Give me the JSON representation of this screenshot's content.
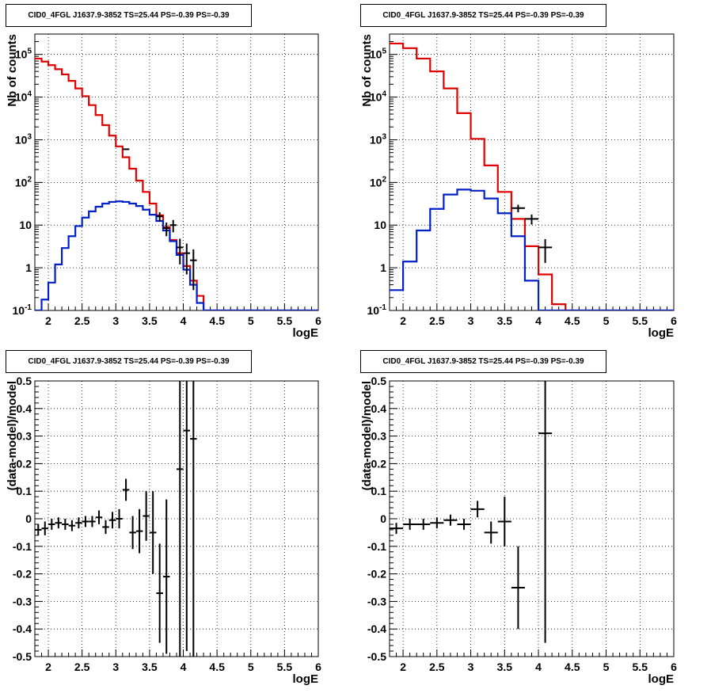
{
  "colors": {
    "data": "#000000",
    "total": "#e00000",
    "source": "#0020c8",
    "grid": "#000000",
    "background": "#ffffff"
  },
  "chart_data": [
    {
      "type": "line",
      "title": "CID0_4FGL J1637.9-3852 TS=25.44 PS=-0.39 PS=-0.39",
      "xlabel": "logE",
      "ylabel": "Nb of counts",
      "yscale": "log",
      "xlim": [
        1.8,
        6.0
      ],
      "ylim": [
        0.1,
        300000
      ],
      "xticks": [
        "2",
        "2.5",
        "3",
        "3.5",
        "4",
        "4.5",
        "5",
        "5.5",
        "6"
      ],
      "yticks": [
        "10^{-1}",
        "1",
        "10",
        "10^{2}",
        "10^{3}",
        "10^{4}",
        "10^{5}"
      ],
      "grid": true,
      "binning": {
        "start": 1.8,
        "width": 0.1
      },
      "series": [
        {
          "values": [
            80000,
            68000,
            56000,
            45000,
            34000,
            24000,
            16000,
            10500,
            6500,
            3800,
            2200,
            1250,
            700,
            390,
            210,
            110,
            60,
            32,
            17,
            9,
            4.5,
            2.2,
            1.1,
            0.5,
            0.22,
            0.1,
            0.1,
            0.1,
            0.1,
            0.1,
            0.1,
            0.1,
            0.1,
            0.1,
            0.1,
            0.1,
            0.1,
            0.1,
            0.1,
            0.1,
            0.1,
            0.1
          ]
        },
        {
          "values": [
            0.1,
            0.18,
            0.45,
            1.2,
            2.9,
            5.5,
            9.5,
            15,
            21,
            27,
            32,
            35,
            36,
            35,
            32,
            28,
            23,
            17.5,
            12.5,
            7.5,
            4.2,
            2.0,
            0.9,
            0.4,
            0.15,
            0.1,
            0.1,
            0.1,
            0.1,
            0.1,
            0.1,
            0.1,
            0.1,
            0.1,
            0.1,
            0.1,
            0.1,
            0.1,
            0.1,
            0.1,
            0.1,
            0.1
          ]
        }
      ],
      "points": [
        {
          "x": 3.15,
          "y": 600,
          "yerr": 25
        },
        {
          "x": 3.65,
          "y": 16,
          "yerr": 4
        },
        {
          "x": 3.75,
          "y": 8.5,
          "yerr": 3
        },
        {
          "x": 3.85,
          "y": 10,
          "yerr": 3.2
        },
        {
          "x": 3.95,
          "y": 3,
          "yerr": 1.8
        },
        {
          "x": 4.05,
          "y": 2.2,
          "yerr": 1.5
        },
        {
          "x": 4.15,
          "y": 1.5,
          "yerr": 1.2
        }
      ]
    },
    {
      "type": "line",
      "title": "CID0_4FGL J1637.9-3852 TS=25.44 PS=-0.39 PS=-0.39",
      "xlabel": "logE",
      "ylabel": "Nb of counts",
      "yscale": "log",
      "xlim": [
        1.8,
        6.0
      ],
      "ylim": [
        0.1,
        300000
      ],
      "xticks": [
        "2",
        "2.5",
        "3",
        "3.5",
        "4",
        "4.5",
        "5",
        "5.5",
        "6"
      ],
      "yticks": [
        "10^{-1}",
        "1",
        "10",
        "10^{2}",
        "10^{3}",
        "10^{4}",
        "10^{5}"
      ],
      "grid": true,
      "binning": {
        "start": 1.8,
        "width": 0.2
      },
      "series": [
        {
          "values": [
            180000,
            140000,
            80000,
            40000,
            16000,
            4200,
            1050,
            250,
            60,
            14,
            3.2,
            0.7,
            0.14,
            0.1,
            0.1,
            0.1,
            0.1,
            0.1,
            0.1,
            0.1,
            0.1
          ]
        },
        {
          "values": [
            0.3,
            1.4,
            7.5,
            24,
            52,
            68,
            64,
            42,
            19,
            5.5,
            0.5,
            0.1,
            0.1,
            0.1,
            0.1,
            0.1,
            0.1,
            0.1,
            0.1,
            0.1,
            0.1
          ]
        }
      ],
      "points": [
        {
          "x": 3.7,
          "y": 25,
          "yerr": 5
        },
        {
          "x": 3.9,
          "y": 14,
          "yerr": 3.7
        },
        {
          "x": 4.1,
          "y": 3,
          "yerr": 1.7
        }
      ]
    },
    {
      "type": "scatter",
      "title": "CID0_4FGL J1637.9-3852 TS=25.44 PS=-0.39 PS=-0.39",
      "xlabel": "logE",
      "ylabel": "(data-model)/model",
      "xlim": [
        1.8,
        6.0
      ],
      "ylim": [
        -0.5,
        0.5
      ],
      "xticks": [
        "2",
        "2.5",
        "3",
        "3.5",
        "4",
        "4.5",
        "5",
        "5.5",
        "6"
      ],
      "yticks": [
        "-0.5",
        "-0.4",
        "-0.3",
        "-0.2",
        "-0.1",
        "0",
        "0.1",
        "0.2",
        "0.3",
        "0.4",
        "0.5"
      ],
      "grid": true,
      "points": [
        {
          "x": 1.85,
          "y": -0.04,
          "xerr": 0.05,
          "yerr": 0.02
        },
        {
          "x": 1.95,
          "y": -0.035,
          "xerr": 0.05,
          "yerr": 0.025
        },
        {
          "x": 2.05,
          "y": -0.02,
          "xerr": 0.05,
          "yerr": 0.02
        },
        {
          "x": 2.15,
          "y": -0.015,
          "xerr": 0.05,
          "yerr": 0.02
        },
        {
          "x": 2.25,
          "y": -0.02,
          "xerr": 0.05,
          "yerr": 0.02
        },
        {
          "x": 2.35,
          "y": -0.025,
          "xerr": 0.05,
          "yerr": 0.02
        },
        {
          "x": 2.45,
          "y": -0.015,
          "xerr": 0.05,
          "yerr": 0.02
        },
        {
          "x": 2.55,
          "y": -0.01,
          "xerr": 0.05,
          "yerr": 0.02
        },
        {
          "x": 2.65,
          "y": -0.01,
          "xerr": 0.05,
          "yerr": 0.02
        },
        {
          "x": 2.75,
          "y": 0.005,
          "xerr": 0.05,
          "yerr": 0.025
        },
        {
          "x": 2.85,
          "y": -0.03,
          "xerr": 0.05,
          "yerr": 0.025
        },
        {
          "x": 2.95,
          "y": -0.005,
          "xerr": 0.05,
          "yerr": 0.03
        },
        {
          "x": 3.05,
          "y": 0.0,
          "xerr": 0.05,
          "yerr": 0.035
        },
        {
          "x": 3.15,
          "y": 0.105,
          "xerr": 0.05,
          "yerr": 0.04
        },
        {
          "x": 3.25,
          "y": -0.05,
          "xerr": 0.05,
          "yerr": 0.06
        },
        {
          "x": 3.35,
          "y": -0.045,
          "xerr": 0.05,
          "yerr": 0.08
        },
        {
          "x": 3.45,
          "y": 0.01,
          "xerr": 0.05,
          "yerr": 0.09
        },
        {
          "x": 3.55,
          "y": -0.05,
          "xerr": 0.05,
          "yerr": 0.15
        },
        {
          "x": 3.65,
          "y": -0.27,
          "xerr": 0.05,
          "yerr": 0.18
        },
        {
          "x": 3.75,
          "y": -0.21,
          "xerr": 0.05,
          "yerr": 0.28
        },
        {
          "x": 3.95,
          "y": 0.18,
          "xerr": 0.05,
          "yerr": 0.7
        },
        {
          "x": 4.05,
          "y": 0.32,
          "xerr": 0.05,
          "yerr": 0.8
        },
        {
          "x": 4.15,
          "y": 0.29,
          "xerr": 0.05,
          "yerr": 0.9
        }
      ]
    },
    {
      "type": "scatter",
      "title": "CID0_4FGL J1637.9-3852 TS=25.44 PS=-0.39 PS=-0.39",
      "xlabel": "logE",
      "ylabel": "(data-model)/model",
      "xlim": [
        1.8,
        6.0
      ],
      "ylim": [
        -0.5,
        0.5
      ],
      "xticks": [
        "2",
        "2.5",
        "3",
        "3.5",
        "4",
        "4.5",
        "5",
        "5.5",
        "6"
      ],
      "yticks": [
        "-0.5",
        "-0.4",
        "-0.3",
        "-0.2",
        "-0.1",
        "0",
        "0.1",
        "0.2",
        "0.3",
        "0.4",
        "0.5"
      ],
      "grid": true,
      "points": [
        {
          "x": 1.9,
          "y": -0.035,
          "xerr": 0.1,
          "yerr": 0.02
        },
        {
          "x": 2.1,
          "y": -0.02,
          "xerr": 0.1,
          "yerr": 0.02
        },
        {
          "x": 2.3,
          "y": -0.02,
          "xerr": 0.1,
          "yerr": 0.02
        },
        {
          "x": 2.5,
          "y": -0.015,
          "xerr": 0.1,
          "yerr": 0.02
        },
        {
          "x": 2.7,
          "y": -0.005,
          "xerr": 0.1,
          "yerr": 0.02
        },
        {
          "x": 2.9,
          "y": -0.02,
          "xerr": 0.1,
          "yerr": 0.02
        },
        {
          "x": 3.1,
          "y": 0.035,
          "xerr": 0.1,
          "yerr": 0.03
        },
        {
          "x": 3.3,
          "y": -0.05,
          "xerr": 0.1,
          "yerr": 0.04
        },
        {
          "x": 3.5,
          "y": -0.01,
          "xerr": 0.1,
          "yerr": 0.09
        },
        {
          "x": 3.7,
          "y": -0.25,
          "xerr": 0.1,
          "yerr": 0.15
        },
        {
          "x": 4.1,
          "y": 0.31,
          "xerr": 0.1,
          "yerr": 0.76
        }
      ]
    }
  ]
}
